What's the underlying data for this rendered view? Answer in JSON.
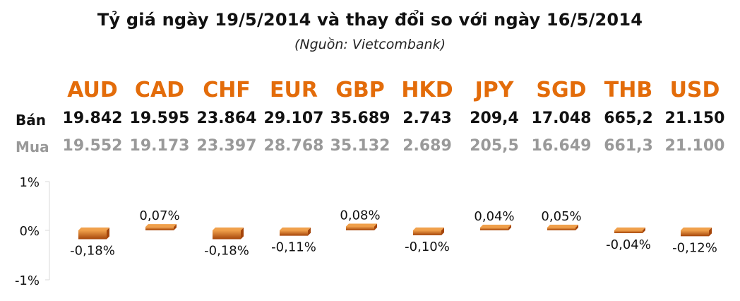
{
  "header": {
    "title": "Tỷ giá ngày 19/5/2014 và thay đổi so với ngày 16/5/2014",
    "subtitle": "(Nguồn: Vietcombank)"
  },
  "table": {
    "sell_label": "Bán",
    "buy_label": "Mua",
    "currencies": [
      "AUD",
      "CAD",
      "CHF",
      "EUR",
      "GBP",
      "HKD",
      "JPY",
      "SGD",
      "THB",
      "USD"
    ],
    "sell": [
      "19.842",
      "19.595",
      "23.864",
      "29.107",
      "35.689",
      "2.743",
      "209,4",
      "17.048",
      "665,2",
      "21.150"
    ],
    "buy": [
      "19.552",
      "19.173",
      "23.397",
      "28.768",
      "35.132",
      "2.689",
      "205,5",
      "16.649",
      "661,3",
      "21.100"
    ]
  },
  "colors": {
    "accent": "#e36c0a",
    "bar_dark": "#a5450a",
    "bar_light": "#f0a04b",
    "buy_text": "#999999"
  },
  "chart_data": {
    "type": "bar",
    "categories": [
      "AUD",
      "CAD",
      "CHF",
      "EUR",
      "GBP",
      "HKD",
      "JPY",
      "SGD",
      "THB",
      "USD"
    ],
    "values": [
      -0.18,
      0.07,
      -0.18,
      -0.11,
      0.08,
      -0.1,
      0.04,
      0.05,
      -0.04,
      -0.12
    ],
    "value_labels": [
      "-0,18%",
      "0,07%",
      "-0,18%",
      "-0,11%",
      "0,08%",
      "-0,10%",
      "0,04%",
      "0,05%",
      "-0,04%",
      "-0,12%"
    ],
    "ylim": [
      -1,
      1
    ],
    "yticks": [
      "1%",
      "0%",
      "-1%"
    ],
    "grid": false
  }
}
